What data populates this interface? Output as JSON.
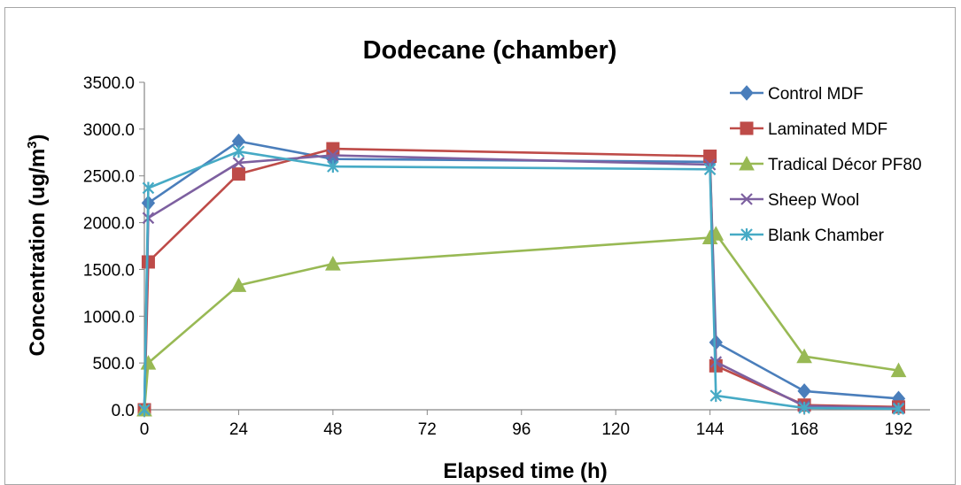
{
  "chart_data": {
    "type": "line",
    "title": "Dodecane (chamber)",
    "xlabel": "Elapsed time (h)",
    "ylabel_main": "Concentration (ug/m",
    "ylabel_sup": "3",
    "ylabel_close": ")",
    "xlim": [
      0,
      200
    ],
    "ylim": [
      0,
      3500
    ],
    "xticks": [
      0,
      24,
      48,
      72,
      96,
      120,
      144,
      168,
      192
    ],
    "yticks": [
      0,
      500,
      1000,
      1500,
      2000,
      2500,
      3000,
      3500
    ],
    "ytick_labels": [
      "0.0",
      "500.0",
      "1000.0",
      "1500.0",
      "2000.0",
      "2500.0",
      "3000.0",
      "3500.0"
    ],
    "grid": false,
    "legend_position": "right",
    "series": [
      {
        "name": "Control MDF",
        "color": "#4a7ebb",
        "marker": "diamond",
        "x": [
          0,
          1,
          24,
          48,
          144,
          145.5,
          168,
          192
        ],
        "y": [
          0,
          2210,
          2870,
          2680,
          2650,
          720,
          200,
          120
        ]
      },
      {
        "name": "Laminated MDF",
        "color": "#be4b48",
        "marker": "square",
        "x": [
          0,
          1,
          24,
          48,
          144,
          145.5,
          168,
          192
        ],
        "y": [
          0,
          1580,
          2520,
          2790,
          2710,
          470,
          50,
          30
        ]
      },
      {
        "name": "Tradical Décor PF80",
        "color": "#98b954",
        "marker": "triangle",
        "x": [
          0,
          1,
          24,
          48,
          144,
          145.5,
          168,
          192
        ],
        "y": [
          0,
          500,
          1330,
          1560,
          1840,
          1880,
          570,
          420
        ]
      },
      {
        "name": "Sheep Wool",
        "color": "#7d60a0",
        "marker": "x",
        "x": [
          0,
          1,
          24,
          48,
          144,
          145.5,
          168,
          192
        ],
        "y": [
          0,
          2050,
          2640,
          2720,
          2620,
          510,
          40,
          20
        ]
      },
      {
        "name": "Blank Chamber",
        "color": "#46aac5",
        "marker": "star",
        "x": [
          0,
          1,
          24,
          48,
          144,
          145.5,
          168,
          192
        ],
        "y": [
          0,
          2370,
          2760,
          2600,
          2570,
          150,
          20,
          10
        ]
      }
    ]
  }
}
